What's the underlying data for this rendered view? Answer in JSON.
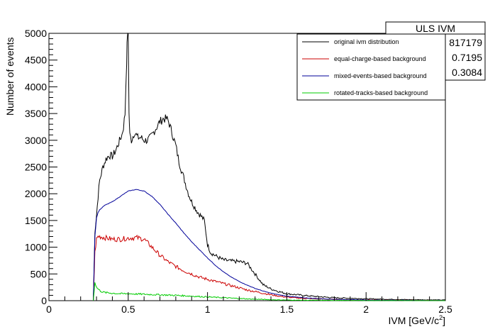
{
  "chart_data": {
    "type": "line",
    "title": "",
    "xlabel": "IVM [GeV/c",
    "xlabel_sup": "2",
    "xlabel_close": "]",
    "ylabel": "Number of events",
    "xlim": [
      0,
      2.5
    ],
    "ylim": [
      0,
      5000
    ],
    "xticks": [
      0,
      0.5,
      1,
      1.5,
      2,
      2.5
    ],
    "xtick_labels": [
      "0",
      "0.5",
      "1",
      "1.5",
      "2",
      "2.5"
    ],
    "yticks": [
      0,
      500,
      1000,
      1500,
      2000,
      2500,
      3000,
      3500,
      4000,
      4500,
      5000
    ],
    "ytick_labels": [
      "0",
      "500",
      "1000",
      "1500",
      "2000",
      "2500",
      "3000",
      "3500",
      "4000",
      "4500",
      "5000"
    ],
    "grid": false,
    "legend_position": "top-right",
    "stats_box": {
      "title": "ULS IVM",
      "values": [
        "817179",
        "0.7195",
        "0.3084"
      ]
    },
    "series": [
      {
        "name": "original ivm distribution",
        "color": "#000000",
        "x": [
          0.28,
          0.29,
          0.3,
          0.31,
          0.32,
          0.34,
          0.36,
          0.38,
          0.4,
          0.42,
          0.44,
          0.46,
          0.47,
          0.48,
          0.49,
          0.495,
          0.5,
          0.505,
          0.51,
          0.52,
          0.54,
          0.56,
          0.58,
          0.6,
          0.62,
          0.64,
          0.66,
          0.68,
          0.7,
          0.72,
          0.74,
          0.75,
          0.76,
          0.78,
          0.8,
          0.82,
          0.84,
          0.86,
          0.88,
          0.9,
          0.92,
          0.94,
          0.96,
          0.98,
          1.0,
          1.02,
          1.05,
          1.1,
          1.15,
          1.2,
          1.25,
          1.3,
          1.35,
          1.4,
          1.45,
          1.5,
          1.6,
          1.7,
          1.8,
          1.9,
          2.0,
          2.1,
          2.2,
          2.3,
          2.4,
          2.5
        ],
        "y": [
          0,
          1300,
          1600,
          1950,
          2250,
          2500,
          2650,
          2720,
          2700,
          2800,
          2950,
          3100,
          3250,
          3500,
          4500,
          5000,
          5000,
          3500,
          3100,
          3000,
          3150,
          3050,
          3050,
          3000,
          3000,
          3050,
          3150,
          3250,
          3350,
          3400,
          3400,
          3380,
          3300,
          3100,
          2900,
          2600,
          2400,
          2200,
          2000,
          1850,
          1750,
          1650,
          1580,
          1500,
          1050,
          900,
          840,
          760,
          740,
          730,
          700,
          500,
          300,
          220,
          170,
          130,
          100,
          75,
          55,
          45,
          35,
          28,
          22,
          18,
          15,
          12
        ]
      },
      {
        "name": "equal-charge-based background",
        "color": "#cc0000",
        "x": [
          0.28,
          0.29,
          0.3,
          0.31,
          0.32,
          0.35,
          0.4,
          0.45,
          0.5,
          0.55,
          0.6,
          0.65,
          0.7,
          0.75,
          0.8,
          0.85,
          0.9,
          0.95,
          1.0,
          1.05,
          1.1,
          1.15,
          1.2,
          1.25,
          1.3,
          1.35,
          1.4,
          1.45,
          1.5,
          1.6,
          1.7,
          1.8,
          1.9,
          2.0,
          2.1,
          2.2,
          2.3,
          2.4,
          2.5
        ],
        "y": [
          0,
          900,
          1150,
          1200,
          1200,
          1180,
          1150,
          1150,
          1170,
          1180,
          1150,
          1000,
          850,
          730,
          640,
          560,
          500,
          440,
          400,
          360,
          320,
          280,
          240,
          200,
          170,
          140,
          110,
          85,
          65,
          45,
          32,
          24,
          18,
          14,
          10,
          8,
          6,
          5,
          4
        ]
      },
      {
        "name": "mixed-events-based background",
        "color": "#000099",
        "x": [
          0.28,
          0.29,
          0.3,
          0.31,
          0.32,
          0.35,
          0.4,
          0.45,
          0.5,
          0.55,
          0.6,
          0.65,
          0.7,
          0.75,
          0.8,
          0.85,
          0.9,
          0.95,
          1.0,
          1.05,
          1.1,
          1.15,
          1.2,
          1.25,
          1.3,
          1.35,
          1.4,
          1.45,
          1.5,
          1.6,
          1.7,
          1.8,
          1.9,
          2.0,
          2.1,
          2.2,
          2.3,
          2.4,
          2.5
        ],
        "y": [
          0,
          1200,
          1550,
          1650,
          1700,
          1780,
          1850,
          1950,
          2050,
          2080,
          2050,
          1950,
          1800,
          1620,
          1450,
          1270,
          1100,
          950,
          800,
          660,
          540,
          440,
          360,
          290,
          230,
          180,
          140,
          110,
          85,
          55,
          38,
          26,
          18,
          13,
          9,
          7,
          5,
          4,
          3
        ]
      },
      {
        "name": "rotated-tracks-based background",
        "color": "#00cc00",
        "x": [
          0.28,
          0.29,
          0.3,
          0.32,
          0.34,
          0.36,
          0.4,
          0.45,
          0.5,
          0.55,
          0.6,
          0.7,
          0.8,
          0.9,
          1.0,
          1.1,
          1.2,
          1.3,
          1.4,
          1.5,
          1.6,
          1.8,
          2.0,
          2.2,
          2.5
        ],
        "y": [
          0,
          350,
          250,
          190,
          160,
          150,
          140,
          130,
          130,
          125,
          120,
          110,
          100,
          85,
          70,
          55,
          40,
          28,
          18,
          12,
          8,
          5,
          3,
          2,
          1
        ]
      }
    ]
  }
}
